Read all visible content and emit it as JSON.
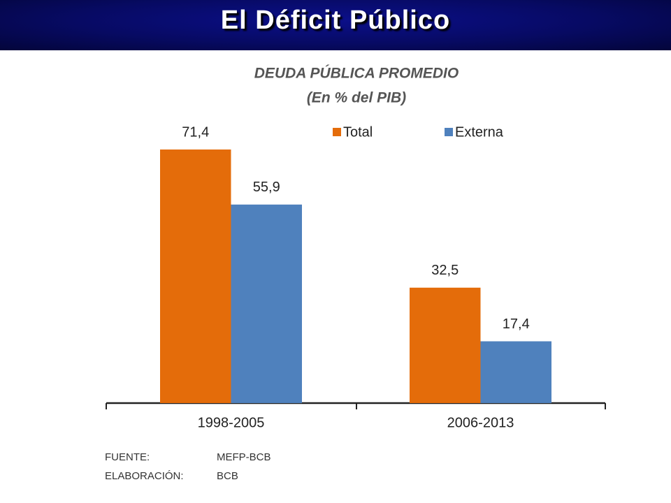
{
  "header": {
    "title": "El Déficit Público"
  },
  "chart_data": {
    "type": "bar",
    "title": "DEUDA PÚBLICA PROMEDIO",
    "subtitle": "(En % del PIB)",
    "categories": [
      "1998-2005",
      "2006-2013"
    ],
    "series": [
      {
        "name": "Total",
        "color": "#e46c0a",
        "values": [
          71.4,
          32.5
        ],
        "value_labels": [
          "71,4",
          "32,5"
        ]
      },
      {
        "name": "Externa",
        "color": "#4f81bd",
        "values": [
          55.9,
          17.4
        ],
        "value_labels": [
          "55,9",
          "17,4"
        ]
      }
    ],
    "legend": "top-right",
    "source": [
      {
        "label": "FUENTE:",
        "value": "MEFP-BCB"
      },
      {
        "label": "ELABORACIÓN:",
        "value": "BCB"
      }
    ]
  }
}
